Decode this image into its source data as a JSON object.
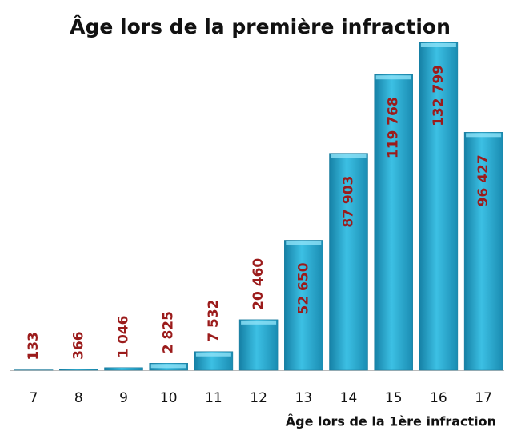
{
  "chart_data": {
    "type": "bar",
    "title": "Âge lors de la première infraction",
    "x_label": "Âge lors de la 1ère infraction",
    "categories": [
      "7",
      "8",
      "9",
      "10",
      "11",
      "12",
      "13",
      "14",
      "15",
      "16",
      "17"
    ],
    "values": [
      133,
      366,
      1046,
      2825,
      7532,
      20460,
      52650,
      87903,
      119768,
      132799,
      96427
    ],
    "value_labels": [
      "133",
      "366",
      "1 046",
      "2 825",
      "7 532",
      "20 460",
      "52 650",
      "87 903",
      "119 768",
      "132 799",
      "96 427"
    ],
    "color": "#2aaed3",
    "label_color": "#9b1b1b"
  }
}
